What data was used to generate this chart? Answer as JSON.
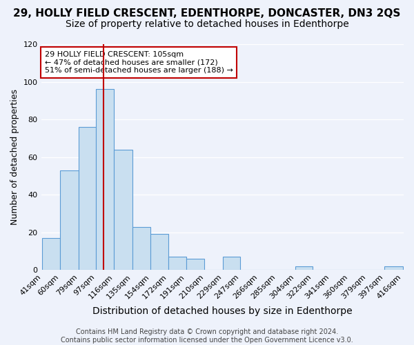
{
  "title": "29, HOLLY FIELD CRESCENT, EDENTHORPE, DONCASTER, DN3 2QS",
  "subtitle": "Size of property relative to detached houses in Edenthorpe",
  "xlabel": "Distribution of detached houses by size in Edenthorpe",
  "ylabel": "Number of detached properties",
  "bin_labels": [
    "41sqm",
    "60sqm",
    "79sqm",
    "97sqm",
    "116sqm",
    "135sqm",
    "154sqm",
    "172sqm",
    "191sqm",
    "210sqm",
    "229sqm",
    "247sqm",
    "266sqm",
    "285sqm",
    "304sqm",
    "322sqm",
    "341sqm",
    "360sqm",
    "379sqm",
    "397sqm",
    "416sqm"
  ],
  "bin_edges": [
    41,
    60,
    79,
    97,
    116,
    135,
    154,
    172,
    191,
    210,
    229,
    247,
    266,
    285,
    304,
    322,
    341,
    360,
    379,
    397,
    416
  ],
  "bar_heights": [
    17,
    53,
    76,
    96,
    64,
    23,
    19,
    7,
    6,
    0,
    7,
    0,
    0,
    0,
    2,
    0,
    0,
    0,
    0,
    2
  ],
  "bar_color": "#c9dff0",
  "bar_edge_color": "#5b9bd5",
  "ylim": [
    0,
    120
  ],
  "yticks": [
    0,
    20,
    40,
    60,
    80,
    100,
    120
  ],
  "property_size": 105,
  "vline_color": "#c00000",
  "annotation_line1": "29 HOLLY FIELD CRESCENT: 105sqm",
  "annotation_line2": "← 47% of detached houses are smaller (172)",
  "annotation_line3": "51% of semi-detached houses are larger (188) →",
  "annotation_box_color": "#ffffff",
  "annotation_box_edge": "#c00000",
  "background_color": "#eef2fb",
  "footer_line1": "Contains HM Land Registry data © Crown copyright and database right 2024.",
  "footer_line2": "Contains public sector information licensed under the Open Government Licence v3.0.",
  "title_fontsize": 11,
  "subtitle_fontsize": 10,
  "xlabel_fontsize": 10,
  "ylabel_fontsize": 9,
  "tick_fontsize": 8,
  "footer_fontsize": 7
}
